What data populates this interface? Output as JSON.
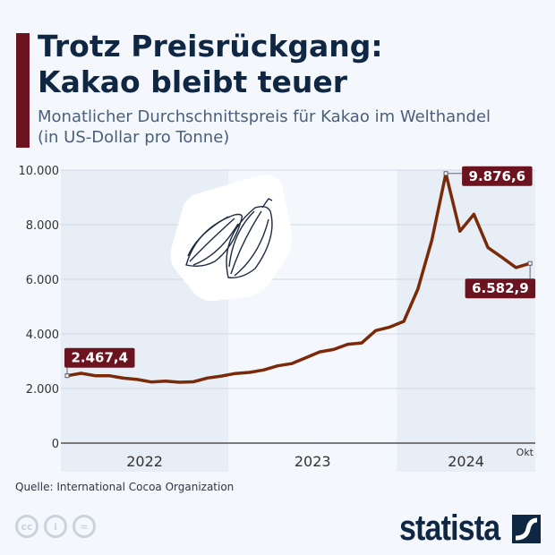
{
  "header": {
    "title_line1": "Trotz Preisrückgang:",
    "title_line2": "Kakao bleibt teuer",
    "subtitle_line1": "Monatlicher Durchschnittspreis für Kakao im Welthandel",
    "subtitle_line2": "(in US-Dollar pro Tonne)"
  },
  "footer": {
    "source": "Quelle: International Cocoa Organization",
    "brand": "statista",
    "license_icons": [
      "cc-icon",
      "by-icon",
      "nd-icon"
    ]
  },
  "colors": {
    "accent": "#6b1420",
    "line": "#7a2a08",
    "title": "#0f2742",
    "band": "#e8eef6"
  },
  "chart_data": {
    "type": "line",
    "title": "Trotz Preisrückgang: Kakao bleibt teuer",
    "ylabel": "",
    "ylim": [
      0,
      10000
    ],
    "yticks": [
      "0",
      "2.000",
      "4.000",
      "6.000",
      "8.000",
      "10.000"
    ],
    "ytick_values": [
      0,
      2000,
      4000,
      6000,
      8000,
      10000
    ],
    "year_labels": [
      "2022",
      "2023",
      "2024"
    ],
    "end_label": "Okt",
    "grid": true,
    "x": [
      "2022-01",
      "2022-02",
      "2022-03",
      "2022-04",
      "2022-05",
      "2022-06",
      "2022-07",
      "2022-08",
      "2022-09",
      "2022-10",
      "2022-11",
      "2022-12",
      "2023-01",
      "2023-02",
      "2023-03",
      "2023-04",
      "2023-05",
      "2023-06",
      "2023-07",
      "2023-08",
      "2023-09",
      "2023-10",
      "2023-11",
      "2023-12",
      "2024-01",
      "2024-02",
      "2024-03",
      "2024-04",
      "2024-05",
      "2024-06",
      "2024-07",
      "2024-08",
      "2024-09",
      "2024-10"
    ],
    "values": [
      2467.4,
      2556,
      2468,
      2470,
      2381,
      2330,
      2240,
      2270,
      2230,
      2245,
      2385,
      2455,
      2550,
      2590,
      2680,
      2830,
      2910,
      3120,
      3340,
      3430,
      3620,
      3670,
      4120,
      4250,
      4460,
      5640,
      7430,
      9876.6,
      7760,
      8380,
      7160,
      6800,
      6430,
      6582.9
    ],
    "annotations": [
      {
        "x": "2022-01",
        "label": "2.467,4"
      },
      {
        "x": "2024-04",
        "label": "9.876,6"
      },
      {
        "x": "2024-10",
        "label": "6.582,9"
      }
    ]
  }
}
